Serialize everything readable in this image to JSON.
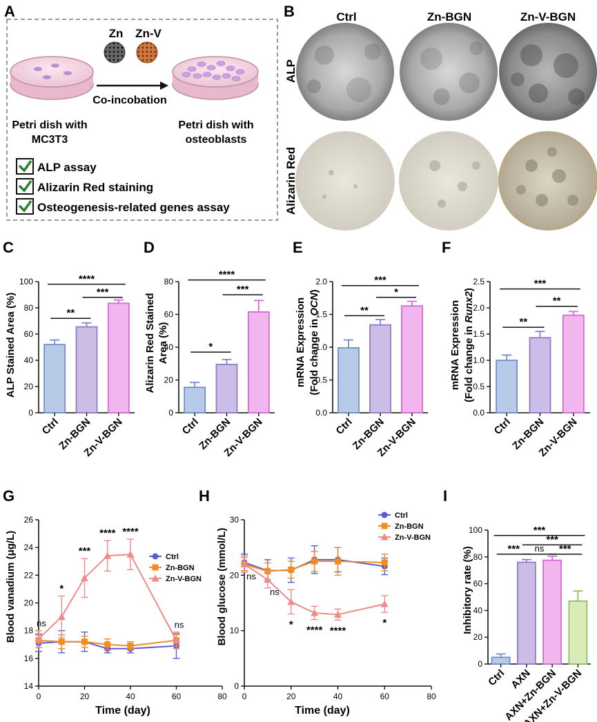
{
  "panels": {
    "A": "A",
    "B": "B",
    "C": "C",
    "D": "D",
    "E": "E",
    "F": "F",
    "G": "G",
    "H": "H",
    "I": "I"
  },
  "schematic": {
    "zn": "Zn",
    "znv": "Zn-V",
    "arrow_label": "Co-incobation",
    "left_dish_line1": "Petri dish with",
    "left_dish_line2": "MC3T3",
    "right_dish_line1": "Petri dish with",
    "right_dish_line2": "osteoblasts",
    "checklist": [
      "ALP assay",
      "Alizarin Red staining",
      "Osteogenesis-related genes assay"
    ],
    "colors": {
      "dish": "#f2cfe0",
      "zn_ball": "#555555",
      "znv_ball": "#c8763f",
      "check": "#2e7d32"
    }
  },
  "photos": {
    "columns": [
      "Ctrl",
      "Zn-BGN",
      "Zn-V-BGN"
    ],
    "rows": [
      "ALP",
      "Alizarin Red"
    ]
  },
  "chart_data": [
    {
      "id": "C",
      "type": "bar",
      "categories": [
        "Ctrl",
        "Zn-BGN",
        "Zn-V-BGN"
      ],
      "values": [
        52,
        65.5,
        83.5
      ],
      "errors": [
        3.5,
        3,
        2.5
      ],
      "ylabel": "ALP Stained Area (%)",
      "ylim": [
        0,
        100
      ],
      "yticks": [
        "0",
        "20",
        "40",
        "60",
        "80",
        "100"
      ],
      "colors": [
        "#b7cbe8",
        "#cbbde6",
        "#f2b6ef"
      ],
      "edges": [
        "#6f8fc7",
        "#8e7cc8",
        "#d36bd6"
      ],
      "significance": [
        {
          "from": 0,
          "to": 1,
          "label": "**"
        },
        {
          "from": 1,
          "to": 2,
          "label": "***"
        },
        {
          "from": 0,
          "to": 2,
          "label": "****"
        }
      ]
    },
    {
      "id": "D",
      "type": "bar",
      "categories": [
        "Ctrl",
        "Zn-BGN",
        "Zn-V-BGN"
      ],
      "values": [
        15.5,
        29.5,
        61.5
      ],
      "errors": [
        3,
        3,
        7
      ],
      "ylabel_line1": "Alizarin Red Stained",
      "ylabel_line2": "Area (%)",
      "ylim": [
        0,
        80
      ],
      "yticks": [
        "0",
        "20",
        "40",
        "60",
        "80"
      ],
      "colors": [
        "#b7cbe8",
        "#cbbde6",
        "#f2b6ef"
      ],
      "edges": [
        "#6f8fc7",
        "#8e7cc8",
        "#d36bd6"
      ],
      "significance": [
        {
          "from": 0,
          "to": 1,
          "label": "*"
        },
        {
          "from": 1,
          "to": 2,
          "label": "***"
        },
        {
          "from": 0,
          "to": 2,
          "label": "****"
        }
      ]
    },
    {
      "id": "E",
      "type": "bar",
      "categories": [
        "Ctrl",
        "Zn-BGN",
        "Zn-V-BGN"
      ],
      "values": [
        0.99,
        1.34,
        1.63
      ],
      "errors": [
        0.12,
        0.08,
        0.07
      ],
      "ylabel_line1": "mRNA Expression",
      "ylabel_line2_prefix": "(Fold change in ",
      "ylabel_gene": "OCN",
      "ylabel_suffix": ")",
      "ylim": [
        0,
        2.0
      ],
      "yticks": [
        "0.0",
        "0.5",
        "1.0",
        "1.5",
        "2.0"
      ],
      "colors": [
        "#b7cbe8",
        "#cbbde6",
        "#f2b6ef"
      ],
      "edges": [
        "#6f8fc7",
        "#8e7cc8",
        "#d36bd6"
      ],
      "significance": [
        {
          "from": 0,
          "to": 1,
          "label": "**"
        },
        {
          "from": 1,
          "to": 2,
          "label": "*"
        },
        {
          "from": 0,
          "to": 2,
          "label": "***"
        }
      ]
    },
    {
      "id": "F",
      "type": "bar",
      "categories": [
        "Ctrl",
        "Zn-BGN",
        "Zn-V-BGN"
      ],
      "values": [
        1.0,
        1.43,
        1.86
      ],
      "errors": [
        0.1,
        0.12,
        0.07
      ],
      "ylabel_line1": "mRNA Expression",
      "ylabel_line2_prefix": "(Fold change in ",
      "ylabel_gene": "Runx2",
      "ylabel_suffix": ")",
      "ylim": [
        0,
        2.5
      ],
      "yticks": [
        "0.0",
        "0.5",
        "1.0",
        "1.5",
        "2.0",
        "2.5"
      ],
      "colors": [
        "#b7cbe8",
        "#cbbde6",
        "#f2b6ef"
      ],
      "edges": [
        "#6f8fc7",
        "#8e7cc8",
        "#d36bd6"
      ],
      "significance": [
        {
          "from": 0,
          "to": 1,
          "label": "**"
        },
        {
          "from": 1,
          "to": 2,
          "label": "**"
        },
        {
          "from": 0,
          "to": 2,
          "label": "***"
        }
      ]
    },
    {
      "id": "G",
      "type": "line",
      "xlabel": "Time (day)",
      "ylabel": "Blood vanadium (μg/L)",
      "xlim": [
        0,
        80
      ],
      "ylim": [
        14,
        26
      ],
      "xticks": [
        "0",
        "20",
        "40",
        "60",
        "80"
      ],
      "yticks": [
        "14",
        "16",
        "18",
        "20",
        "22",
        "24",
        "26"
      ],
      "x": [
        0,
        10,
        20,
        30,
        40,
        60
      ],
      "series": [
        {
          "name": "Ctrl",
          "color": "#5b5bd6",
          "marker": "circle",
          "values": [
            17.1,
            17.2,
            17.2,
            16.7,
            16.7,
            16.9
          ],
          "errors": [
            0.6,
            0.8,
            0.7,
            0.3,
            0.3,
            0.9
          ]
        },
        {
          "name": "Zn-BGN",
          "color": "#f28c1f",
          "marker": "square",
          "values": [
            17.3,
            17.2,
            17.2,
            17.0,
            16.9,
            17.3
          ],
          "errors": [
            0.5,
            0.5,
            0.4,
            0.4,
            0.3,
            0.4
          ]
        },
        {
          "name": "Zn-V-BGN",
          "color": "#f08a8a",
          "marker": "triangle",
          "values": [
            17.4,
            19.0,
            21.8,
            23.4,
            23.5,
            17.3
          ],
          "errors": [
            0.6,
            1.5,
            1.4,
            1.1,
            1.1,
            0.6
          ]
        }
      ],
      "annotations": [
        {
          "x": 0,
          "label": "ns"
        },
        {
          "x": 10,
          "label": "*"
        },
        {
          "x": 20,
          "label": "***"
        },
        {
          "x": 30,
          "label": "****"
        },
        {
          "x": 40,
          "label": "****"
        },
        {
          "x": 60,
          "label": "ns"
        }
      ],
      "legend": "top-right"
    },
    {
      "id": "H",
      "type": "line",
      "xlabel": "Time (day)",
      "ylabel": "Blood glucose (mmol/L)",
      "xlim": [
        0,
        80
      ],
      "ylim": [
        0,
        30
      ],
      "xticks": [
        "0",
        "20",
        "40",
        "60",
        "80"
      ],
      "yticks": [
        "0",
        "10",
        "20",
        "30"
      ],
      "x": [
        0,
        10,
        20,
        30,
        40,
        60
      ],
      "series": [
        {
          "name": "Ctrl",
          "color": "#5b5bd6",
          "marker": "circle",
          "values": [
            22.3,
            20.8,
            20.9,
            22.8,
            22.8,
            21.6
          ],
          "errors": [
            1.5,
            2.0,
            2.2,
            2.5,
            2.2,
            1.5
          ]
        },
        {
          "name": "Zn-BGN",
          "color": "#f28c1f",
          "marker": "square",
          "values": [
            22.0,
            20.7,
            21.0,
            22.5,
            22.5,
            22.3
          ],
          "errors": [
            1.2,
            1.5,
            1.5,
            1.8,
            2.5,
            1.5
          ]
        },
        {
          "name": "Zn-V-BGN",
          "color": "#f08a8a",
          "marker": "triangle",
          "values": [
            22.0,
            19.2,
            15.2,
            13.2,
            12.9,
            14.8
          ],
          "errors": [
            1.5,
            1.5,
            2.2,
            1.2,
            1.0,
            1.5
          ]
        }
      ],
      "annotations_side": [
        {
          "x": 0,
          "label": "ns"
        },
        {
          "x": 10,
          "label": "ns"
        }
      ],
      "annotations_below": [
        {
          "x": 20,
          "label": "*"
        },
        {
          "x": 30,
          "label": "****"
        },
        {
          "x": 40,
          "label": "****"
        },
        {
          "x": 60,
          "label": "*"
        }
      ],
      "legend": "top-right"
    },
    {
      "id": "I",
      "type": "bar",
      "categories": [
        "Ctrl",
        "AXN",
        "AXN+Zn-BGN",
        "AXN+Zn-V-BGN"
      ],
      "values": [
        5,
        76,
        77.5,
        47
      ],
      "errors": [
        2.5,
        2,
        3,
        7.5
      ],
      "ylabel": "Inhibitory rate (%)",
      "ylim": [
        0,
        100
      ],
      "yticks": [
        "0",
        "20",
        "40",
        "60",
        "80",
        "100"
      ],
      "colors": [
        "#b7cbe8",
        "#cbbde6",
        "#f2b6ef",
        "#d9ecb8"
      ],
      "edges": [
        "#6f8fc7",
        "#8e7cc8",
        "#d36bd6",
        "#8fbf5f"
      ],
      "significance": [
        {
          "from": 0,
          "to": 1,
          "label": "***"
        },
        {
          "from": 1,
          "to": 2,
          "label": "ns"
        },
        {
          "from": 2,
          "to": 3,
          "label": "***"
        },
        {
          "from": 1,
          "to": 3,
          "label": "***"
        },
        {
          "from": 0,
          "to": 3,
          "label": "***"
        }
      ]
    }
  ]
}
